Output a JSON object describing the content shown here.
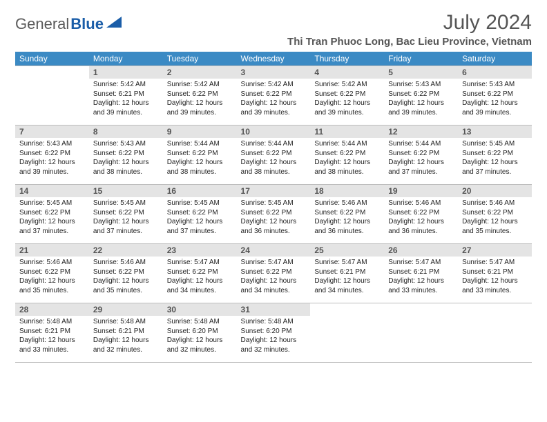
{
  "logo": {
    "part1": "General",
    "part2": "Blue"
  },
  "month_title": "July 2024",
  "location": "Thi Tran Phuoc Long, Bac Lieu Province, Vietnam",
  "header_bg": "#3b8ac4",
  "daynum_bg": "#e4e4e4",
  "border_color": "#bbbbbb",
  "weekdays": [
    "Sunday",
    "Monday",
    "Tuesday",
    "Wednesday",
    "Thursday",
    "Friday",
    "Saturday"
  ],
  "weeks": [
    [
      null,
      {
        "n": "1",
        "sr": "5:42 AM",
        "ss": "6:21 PM",
        "dl": "12 hours and 39 minutes."
      },
      {
        "n": "2",
        "sr": "5:42 AM",
        "ss": "6:22 PM",
        "dl": "12 hours and 39 minutes."
      },
      {
        "n": "3",
        "sr": "5:42 AM",
        "ss": "6:22 PM",
        "dl": "12 hours and 39 minutes."
      },
      {
        "n": "4",
        "sr": "5:42 AM",
        "ss": "6:22 PM",
        "dl": "12 hours and 39 minutes."
      },
      {
        "n": "5",
        "sr": "5:43 AM",
        "ss": "6:22 PM",
        "dl": "12 hours and 39 minutes."
      },
      {
        "n": "6",
        "sr": "5:43 AM",
        "ss": "6:22 PM",
        "dl": "12 hours and 39 minutes."
      }
    ],
    [
      {
        "n": "7",
        "sr": "5:43 AM",
        "ss": "6:22 PM",
        "dl": "12 hours and 39 minutes."
      },
      {
        "n": "8",
        "sr": "5:43 AM",
        "ss": "6:22 PM",
        "dl": "12 hours and 38 minutes."
      },
      {
        "n": "9",
        "sr": "5:44 AM",
        "ss": "6:22 PM",
        "dl": "12 hours and 38 minutes."
      },
      {
        "n": "10",
        "sr": "5:44 AM",
        "ss": "6:22 PM",
        "dl": "12 hours and 38 minutes."
      },
      {
        "n": "11",
        "sr": "5:44 AM",
        "ss": "6:22 PM",
        "dl": "12 hours and 38 minutes."
      },
      {
        "n": "12",
        "sr": "5:44 AM",
        "ss": "6:22 PM",
        "dl": "12 hours and 37 minutes."
      },
      {
        "n": "13",
        "sr": "5:45 AM",
        "ss": "6:22 PM",
        "dl": "12 hours and 37 minutes."
      }
    ],
    [
      {
        "n": "14",
        "sr": "5:45 AM",
        "ss": "6:22 PM",
        "dl": "12 hours and 37 minutes."
      },
      {
        "n": "15",
        "sr": "5:45 AM",
        "ss": "6:22 PM",
        "dl": "12 hours and 37 minutes."
      },
      {
        "n": "16",
        "sr": "5:45 AM",
        "ss": "6:22 PM",
        "dl": "12 hours and 37 minutes."
      },
      {
        "n": "17",
        "sr": "5:45 AM",
        "ss": "6:22 PM",
        "dl": "12 hours and 36 minutes."
      },
      {
        "n": "18",
        "sr": "5:46 AM",
        "ss": "6:22 PM",
        "dl": "12 hours and 36 minutes."
      },
      {
        "n": "19",
        "sr": "5:46 AM",
        "ss": "6:22 PM",
        "dl": "12 hours and 36 minutes."
      },
      {
        "n": "20",
        "sr": "5:46 AM",
        "ss": "6:22 PM",
        "dl": "12 hours and 35 minutes."
      }
    ],
    [
      {
        "n": "21",
        "sr": "5:46 AM",
        "ss": "6:22 PM",
        "dl": "12 hours and 35 minutes."
      },
      {
        "n": "22",
        "sr": "5:46 AM",
        "ss": "6:22 PM",
        "dl": "12 hours and 35 minutes."
      },
      {
        "n": "23",
        "sr": "5:47 AM",
        "ss": "6:22 PM",
        "dl": "12 hours and 34 minutes."
      },
      {
        "n": "24",
        "sr": "5:47 AM",
        "ss": "6:22 PM",
        "dl": "12 hours and 34 minutes."
      },
      {
        "n": "25",
        "sr": "5:47 AM",
        "ss": "6:21 PM",
        "dl": "12 hours and 34 minutes."
      },
      {
        "n": "26",
        "sr": "5:47 AM",
        "ss": "6:21 PM",
        "dl": "12 hours and 33 minutes."
      },
      {
        "n": "27",
        "sr": "5:47 AM",
        "ss": "6:21 PM",
        "dl": "12 hours and 33 minutes."
      }
    ],
    [
      {
        "n": "28",
        "sr": "5:48 AM",
        "ss": "6:21 PM",
        "dl": "12 hours and 33 minutes."
      },
      {
        "n": "29",
        "sr": "5:48 AM",
        "ss": "6:21 PM",
        "dl": "12 hours and 32 minutes."
      },
      {
        "n": "30",
        "sr": "5:48 AM",
        "ss": "6:20 PM",
        "dl": "12 hours and 32 minutes."
      },
      {
        "n": "31",
        "sr": "5:48 AM",
        "ss": "6:20 PM",
        "dl": "12 hours and 32 minutes."
      },
      null,
      null,
      null
    ]
  ],
  "labels": {
    "sunrise": "Sunrise:",
    "sunset": "Sunset:",
    "daylight": "Daylight:"
  }
}
